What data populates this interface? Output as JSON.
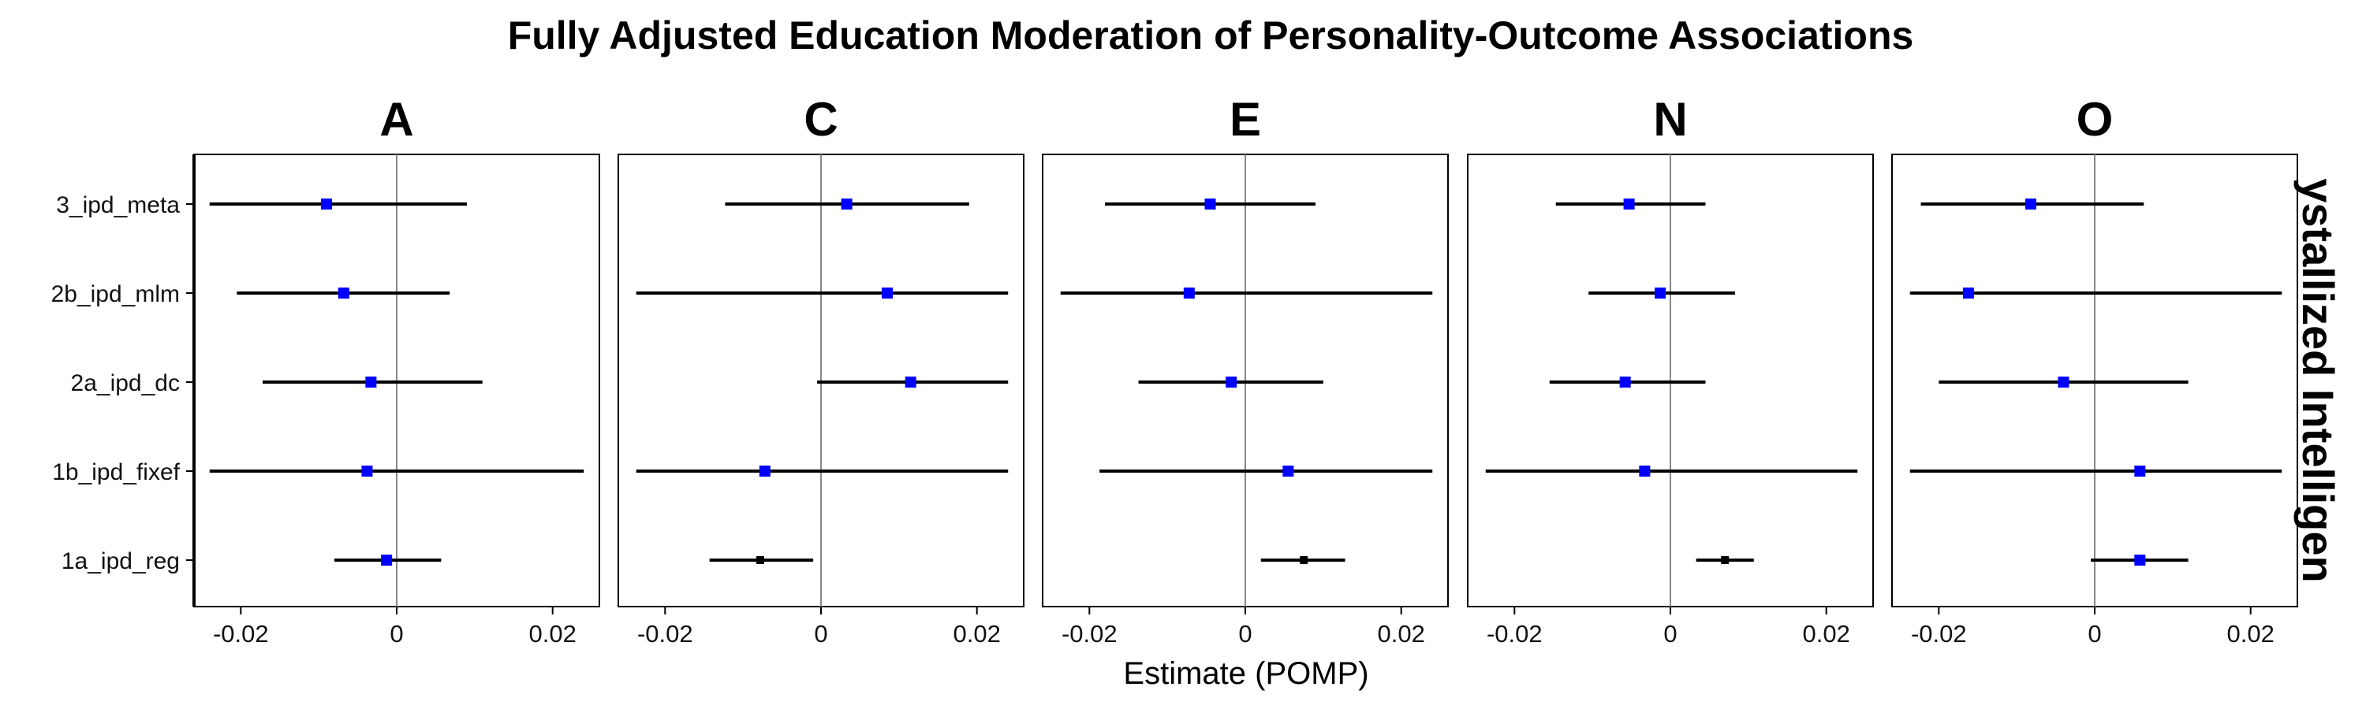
{
  "chart_data": {
    "type": "forest",
    "title": "Fully Adjusted Education Moderation of Personality-Outcome Associations",
    "facet_row_label": "ystallized Intelligen",
    "xlabel": "Estimate (POMP)",
    "ylabel": "",
    "xlim": [
      -0.026,
      0.026
    ],
    "xticks": [
      -0.02,
      0,
      0.02
    ],
    "xtick_labels": [
      "-0.02",
      "0",
      "0.02"
    ],
    "reference_line": 0,
    "categories": [
      "3_ipd_meta",
      "2b_ipd_mlm",
      "2a_ipd_dc",
      "1b_ipd_fixef",
      "1a_ipd_reg"
    ],
    "colors": {
      "significant": "#000000",
      "not_significant": "#0000ff",
      "ci_line": "#000000",
      "zero_line": "#888888"
    },
    "panels": [
      {
        "name": "A",
        "points": [
          {
            "model": "3_ipd_meta",
            "estimate": -0.009,
            "lower": -0.024,
            "upper": 0.009,
            "color": "#0000ff"
          },
          {
            "model": "2b_ipd_mlm",
            "estimate": -0.0068,
            "lower": -0.0205,
            "upper": 0.0068,
            "color": "#0000ff"
          },
          {
            "model": "2a_ipd_dc",
            "estimate": -0.0033,
            "lower": -0.0172,
            "upper": 0.011,
            "color": "#0000ff"
          },
          {
            "model": "1b_ipd_fixef",
            "estimate": -0.0038,
            "lower": -0.024,
            "upper": 0.024,
            "color": "#0000ff"
          },
          {
            "model": "1a_ipd_reg",
            "estimate": -0.0013,
            "lower": -0.008,
            "upper": 0.0057,
            "color": "#0000ff"
          }
        ]
      },
      {
        "name": "C",
        "points": [
          {
            "model": "3_ipd_meta",
            "estimate": 0.0033,
            "lower": -0.0123,
            "upper": 0.019,
            "color": "#0000ff"
          },
          {
            "model": "2b_ipd_mlm",
            "estimate": 0.0085,
            "lower": -0.0237,
            "upper": 0.024,
            "color": "#0000ff"
          },
          {
            "model": "2a_ipd_dc",
            "estimate": 0.0115,
            "lower": -0.0005,
            "upper": 0.024,
            "color": "#0000ff"
          },
          {
            "model": "1b_ipd_fixef",
            "estimate": -0.0072,
            "lower": -0.0237,
            "upper": 0.024,
            "color": "#0000ff"
          },
          {
            "model": "1a_ipd_reg",
            "estimate": -0.0078,
            "lower": -0.0143,
            "upper": -0.001,
            "color": "#000000"
          }
        ]
      },
      {
        "name": "E",
        "points": [
          {
            "model": "3_ipd_meta",
            "estimate": -0.0045,
            "lower": -0.018,
            "upper": 0.009,
            "color": "#0000ff"
          },
          {
            "model": "2b_ipd_mlm",
            "estimate": -0.0072,
            "lower": -0.0237,
            "upper": 0.024,
            "color": "#0000ff"
          },
          {
            "model": "2a_ipd_dc",
            "estimate": -0.0018,
            "lower": -0.0137,
            "upper": 0.01,
            "color": "#0000ff"
          },
          {
            "model": "1b_ipd_fixef",
            "estimate": 0.0055,
            "lower": -0.0187,
            "upper": 0.024,
            "color": "#0000ff"
          },
          {
            "model": "1a_ipd_reg",
            "estimate": 0.0075,
            "lower": 0.002,
            "upper": 0.0128,
            "color": "#000000"
          }
        ]
      },
      {
        "name": "N",
        "points": [
          {
            "model": "3_ipd_meta",
            "estimate": -0.0053,
            "lower": -0.0147,
            "upper": 0.0045,
            "color": "#0000ff"
          },
          {
            "model": "2b_ipd_mlm",
            "estimate": -0.0013,
            "lower": -0.0105,
            "upper": 0.0083,
            "color": "#0000ff"
          },
          {
            "model": "2a_ipd_dc",
            "estimate": -0.0058,
            "lower": -0.0155,
            "upper": 0.0045,
            "color": "#0000ff"
          },
          {
            "model": "1b_ipd_fixef",
            "estimate": -0.0033,
            "lower": -0.0237,
            "upper": 0.024,
            "color": "#0000ff"
          },
          {
            "model": "1a_ipd_reg",
            "estimate": 0.007,
            "lower": 0.0033,
            "upper": 0.0107,
            "color": "#000000"
          }
        ]
      },
      {
        "name": "O",
        "points": [
          {
            "model": "3_ipd_meta",
            "estimate": -0.0082,
            "lower": -0.0223,
            "upper": 0.0063,
            "color": "#0000ff"
          },
          {
            "model": "2b_ipd_mlm",
            "estimate": -0.0162,
            "lower": -0.0237,
            "upper": 0.024,
            "color": "#0000ff"
          },
          {
            "model": "2a_ipd_dc",
            "estimate": -0.004,
            "lower": -0.02,
            "upper": 0.012,
            "color": "#0000ff"
          },
          {
            "model": "1b_ipd_fixef",
            "estimate": 0.0058,
            "lower": -0.0237,
            "upper": 0.024,
            "color": "#0000ff"
          },
          {
            "model": "1a_ipd_reg",
            "estimate": 0.0058,
            "lower": -0.0005,
            "upper": 0.012,
            "color": "#0000ff"
          }
        ]
      }
    ]
  }
}
